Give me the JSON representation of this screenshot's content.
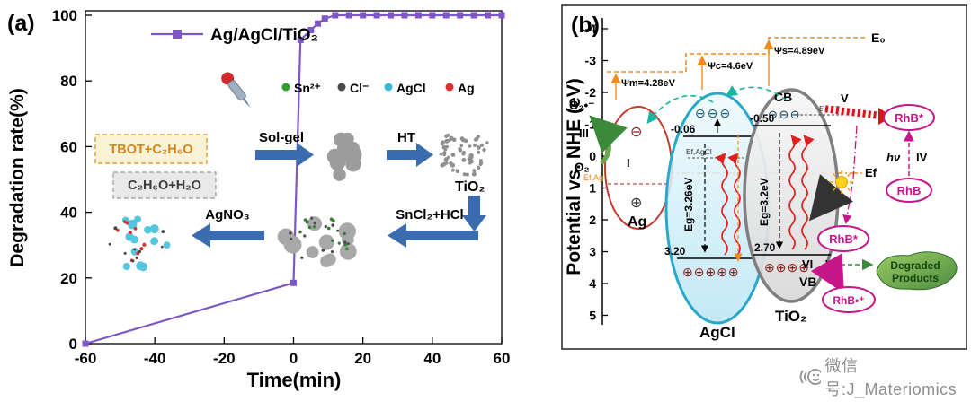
{
  "watermark": {
    "text": "微信号:J_Materiomics"
  },
  "panel_a": {
    "label": "(a)",
    "inset": {
      "reagent_box_top": "TBOT+C₂H₆O",
      "reagent_box_bottom": "C₂H₆O+H₂O",
      "step1": "Sol-gel",
      "step2": "HT",
      "product1": "TiO₂",
      "step3": "SnCl₂+HCl",
      "step4": "AgNO₃",
      "legend": [
        {
          "label": "Sn²⁺",
          "color": "#2f9e2f"
        },
        {
          "label": "Cl⁻",
          "color": "#4a4a4a"
        },
        {
          "label": "AgCl",
          "color": "#38bcd9"
        },
        {
          "label": "Ag",
          "color": "#e03030"
        }
      ]
    }
  },
  "chart_data": {
    "type": "line",
    "title": "",
    "xlabel": "Time(min)",
    "ylabel": "Degradation rate(%)",
    "xlim": [
      -60,
      60
    ],
    "ylim": [
      0,
      100
    ],
    "xticks": [
      -60,
      -40,
      -20,
      0,
      20,
      40,
      60
    ],
    "yticks": [
      0,
      20,
      40,
      60,
      80,
      100
    ],
    "grid": false,
    "legend_position": "top-left",
    "series": [
      {
        "name": "Ag/AgCl/TiO₂",
        "color": "#7d57c8",
        "marker": "square",
        "x": [
          -60,
          0,
          2,
          5,
          7,
          9,
          12,
          16,
          20,
          24,
          28,
          32,
          36,
          40,
          44,
          48,
          52,
          56,
          60
        ],
        "y": [
          0,
          18.5,
          92.5,
          95.5,
          97.5,
          99,
          100,
          100,
          100,
          100,
          100,
          100,
          100,
          100,
          100,
          100,
          100,
          100,
          100
        ]
      }
    ]
  },
  "panel_b": {
    "label": "(b)",
    "ylabel": "Potential vs. NHE (eV)",
    "yticks": [
      -4,
      -3,
      -2,
      -1,
      0,
      1,
      2,
      3,
      4,
      5
    ],
    "vacuum_label": "E₀",
    "work_functions": {
      "ag": "Ψm=4.28eV",
      "agcl": "Ψc=4.6eV",
      "tio2": "Ψs=4.89eV"
    },
    "fermi": {
      "ag": "Ef,Ag",
      "agcl": "Ef,AgCl",
      "tio2": "Ef,TiO₂",
      "system": "Ef"
    },
    "ag": {
      "name": "Ag",
      "electron": "⊖",
      "hole": "⊕"
    },
    "agcl": {
      "name": "AgCl",
      "cb_level": "-0.06",
      "vb_level": "3.20",
      "band_gap": "Eg=3.26eV",
      "electrons": "⊖⊖⊖",
      "holes": "⊕⊕⊕⊕⊕"
    },
    "tio2": {
      "name": "TiO₂",
      "cb_label": "CB",
      "vb_label": "VB",
      "cb_level": "-0.50",
      "vb_level": "2.70",
      "band_gap": "Eg=3.2eV",
      "electrons": "⊖⊖⊖",
      "holes": "⊕⊕⊕⊕"
    },
    "oxygen": {
      "superoxide": "O₂•⁻",
      "molecule": "O₂"
    },
    "dye": {
      "excited1": "RhB*",
      "ground": "RhB",
      "excited2": "RhB*",
      "cation": "RhB•⁺",
      "hv": "hν"
    },
    "products": {
      "line1": "Degraded",
      "line2": "Products"
    },
    "steps": {
      "i": "I",
      "iii": "III",
      "iv": "IV",
      "v": "V",
      "vi": "VI",
      "vii": "VII"
    }
  }
}
